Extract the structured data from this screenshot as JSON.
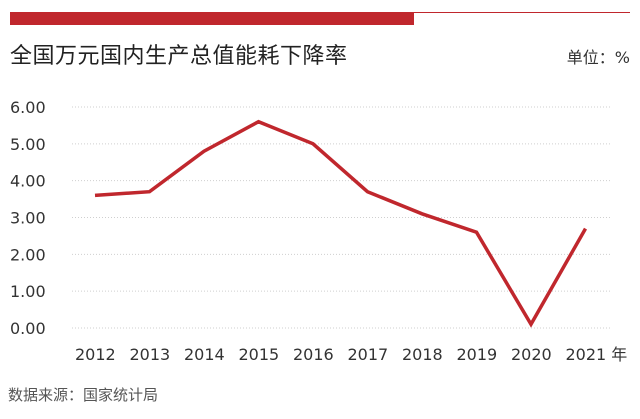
{
  "title": "全国万元国内生产总值能耗下降率",
  "unit_label": "单位：%",
  "source": "数据来源：国家统计局",
  "colors": {
    "accent": "#c0272d",
    "line": "#c0272d",
    "grid": "#cfcfcf"
  },
  "chart_data": {
    "type": "line",
    "title": "全国万元国内生产总值能耗下降率",
    "xlabel": "",
    "ylabel": "单位：%",
    "categories": [
      "2012",
      "2013",
      "2014",
      "2015",
      "2016",
      "2017",
      "2018",
      "2019",
      "2020",
      "2021 年"
    ],
    "series": [
      {
        "values": [
          3.6,
          3.7,
          4.8,
          5.6,
          5.0,
          3.7,
          3.1,
          2.6,
          0.1,
          2.7
        ]
      }
    ],
    "yticks": [
      "0.00",
      "1.00",
      "2.00",
      "3.00",
      "4.00",
      "5.00",
      "6.00"
    ],
    "ylim": [
      0,
      6
    ],
    "grid": "horizontal-dotted",
    "legend": "none"
  }
}
